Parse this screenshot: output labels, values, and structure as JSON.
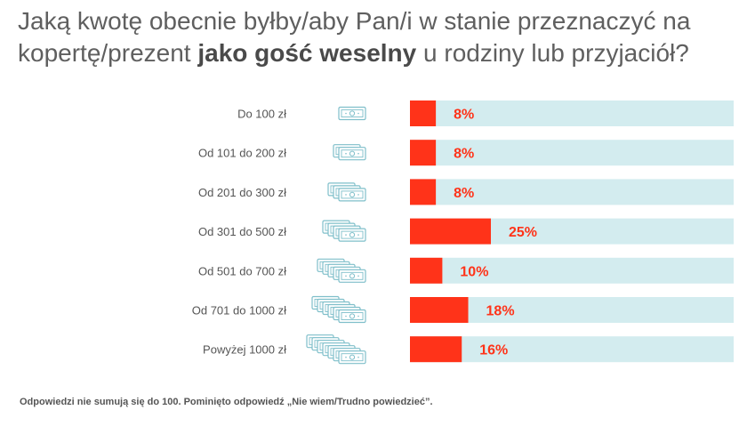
{
  "title": {
    "part1": "Jaką kwotę obecnie byłby/aby Pan/i w stanie przeznaczyć na kopertę/prezent ",
    "bold": "jako gość weselny",
    "part2": " u rodziny lub przyjaciół?"
  },
  "colors": {
    "bar": "#ff3319",
    "track": "#d3ecef",
    "label": "#555555",
    "value": "#ff3319",
    "money_icon": "#7fbfca"
  },
  "icon": "banknote-stack-icon",
  "footnote": "Odpowiedzi nie sumują się do 100. Pominięto odpowiedź „Nie wiem/Trudno powiedzieć”.",
  "chart_data": {
    "type": "bar",
    "orientation": "horizontal",
    "categories": [
      "Do 100 zł",
      "Od 101 do 200 zł",
      "Od 201 do 300 zł",
      "Od 301 do 500 zł",
      "Od 501 do 700 zł",
      "Od 701 do 1000 zł",
      "Powyżej 1000 zł"
    ],
    "values": [
      8,
      8,
      8,
      25,
      10,
      18,
      16
    ],
    "value_labels": [
      "8%",
      "8%",
      "8%",
      "25%",
      "10%",
      "18%",
      "16%"
    ],
    "note_counts": [
      1,
      2,
      3,
      4,
      5,
      6,
      7
    ],
    "xlim": [
      0,
      100
    ],
    "unit": "%",
    "grid": false
  }
}
